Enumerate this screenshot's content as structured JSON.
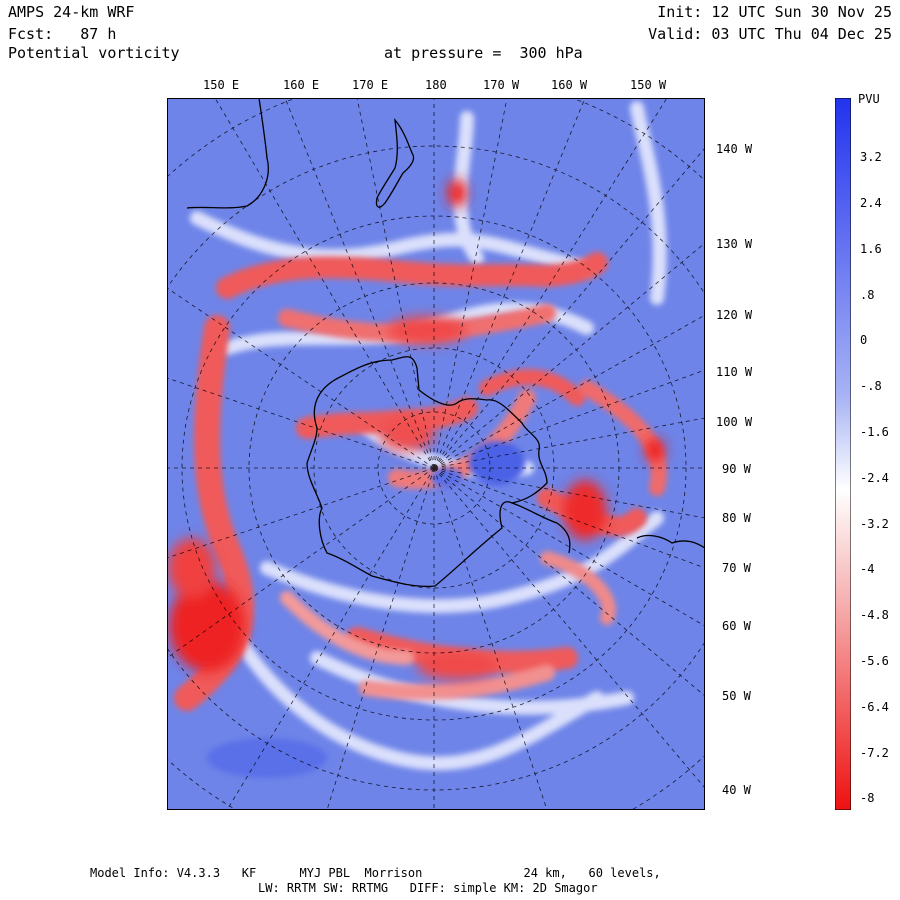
{
  "header": {
    "model": "AMPS 24-km WRF",
    "forecast": "Fcst:   87 h",
    "field": "Potential vorticity",
    "level": "at pressure =  300 hPa",
    "init": "Init: 12 UTC Sun 30 Nov 25",
    "valid": "Valid: 03 UTC Thu 04 Dec 25"
  },
  "map": {
    "top_longitudes": [
      "150 E",
      "160 E",
      "170 E",
      "180",
      "170 W",
      "160 W",
      "150 W"
    ],
    "right_longitudes": [
      "140 W",
      "130 W",
      "120 W",
      "110 W",
      "100 W",
      "90 W",
      "80 W",
      "70 W",
      "60 W",
      "50 W",
      "40 W"
    ]
  },
  "colorbar": {
    "unit": "PVU",
    "labels": [
      "3.2",
      "2.4",
      "1.6",
      ".8",
      "0",
      "-.8",
      "-1.6",
      "-2.4",
      "-3.2",
      "-4",
      "-4.8",
      "-5.6",
      "-6.4",
      "-7.2",
      "-8"
    ],
    "colors": {
      "positive": "#2233ee",
      "neutral": "#ffffff",
      "negative": "#ee1111",
      "field": "#6e84e8"
    }
  },
  "footer": {
    "line1": "Model Info: V4.3.3   KF      MYJ PBL  Morrison              24 km,   60 levels,",
    "line2": "LW: RRTM SW: RRTMG   DIFF: simple KM: 2D Smagor"
  }
}
